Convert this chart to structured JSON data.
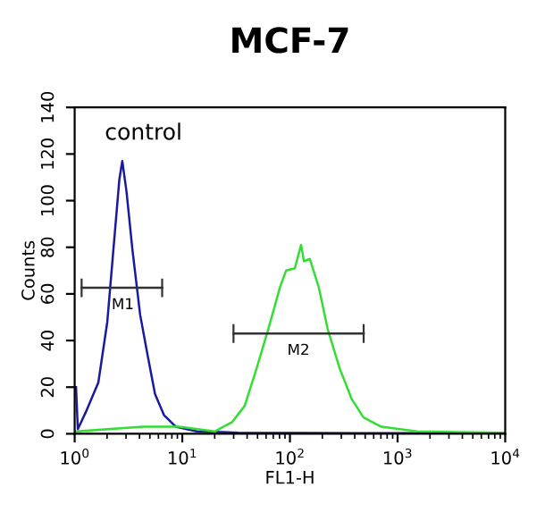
{
  "chart_data": {
    "type": "line",
    "title": "MCF-7",
    "xlabel": "FL1-H",
    "ylabel": "Counts",
    "log": "x",
    "xlim": [
      1,
      10000
    ],
    "xticks": [
      {
        "value": 1,
        "label": "10$^{0}$"
      },
      {
        "value": 10,
        "label": "10$^{1}$"
      },
      {
        "value": 100,
        "label": "10$^{2}$"
      },
      {
        "value": 1000,
        "label": "10$^{3}$"
      },
      {
        "value": 10000,
        "label": "10$^{4}$"
      }
    ],
    "ylim": [
      0,
      140
    ],
    "yticks": [
      0,
      20,
      40,
      60,
      80,
      100,
      120,
      140
    ],
    "grid": false,
    "legend": false,
    "marker": "none",
    "line_style": "solid",
    "series": [
      {
        "color": "#1a1aa0",
        "x": [
          1.03,
          1.07,
          1.29,
          1.66,
          2.01,
          2.29,
          2.6,
          2.77,
          3.03,
          3.44,
          4.06,
          4.79,
          5.58,
          6.76,
          8.72,
          13.6,
          33,
          425,
          10000
        ],
        "values": [
          20,
          2,
          10,
          22,
          48,
          79,
          109,
          117,
          104,
          79,
          51,
          33,
          17,
          8,
          3,
          1,
          0.5,
          0.3,
          0.3
        ]
      },
      {
        "color": "#33dd33",
        "x": [
          1.03,
          4.33,
          9.3,
          20,
          29,
          38,
          49,
          63,
          81,
          92,
          111,
          127,
          135,
          153,
          185,
          224,
          290,
          374,
          482,
          707,
          1518,
          10000
        ],
        "values": [
          1,
          3,
          3,
          1,
          5,
          12,
          28,
          45,
          63,
          70,
          71,
          81,
          74,
          75,
          63,
          45,
          28,
          15,
          7,
          3,
          1,
          0.5
        ]
      },
      {
        "color": "#333333",
        "x": [
          1.16,
          6.5
        ],
        "values": [
          62.6,
          62.6
        ],
        "errors": [
          4,
          4
        ]
      },
      {
        "color": "#333333",
        "x": [
          29.9,
          484
        ],
        "values": [
          43,
          43
        ],
        "errors": [
          4,
          4
        ]
      }
    ],
    "annotations": [
      "control",
      {
        "text": "M1",
        "x": 2.8,
        "y": 62.6
      },
      {
        "text": "M2",
        "x": 120,
        "y": 43
      }
    ]
  }
}
